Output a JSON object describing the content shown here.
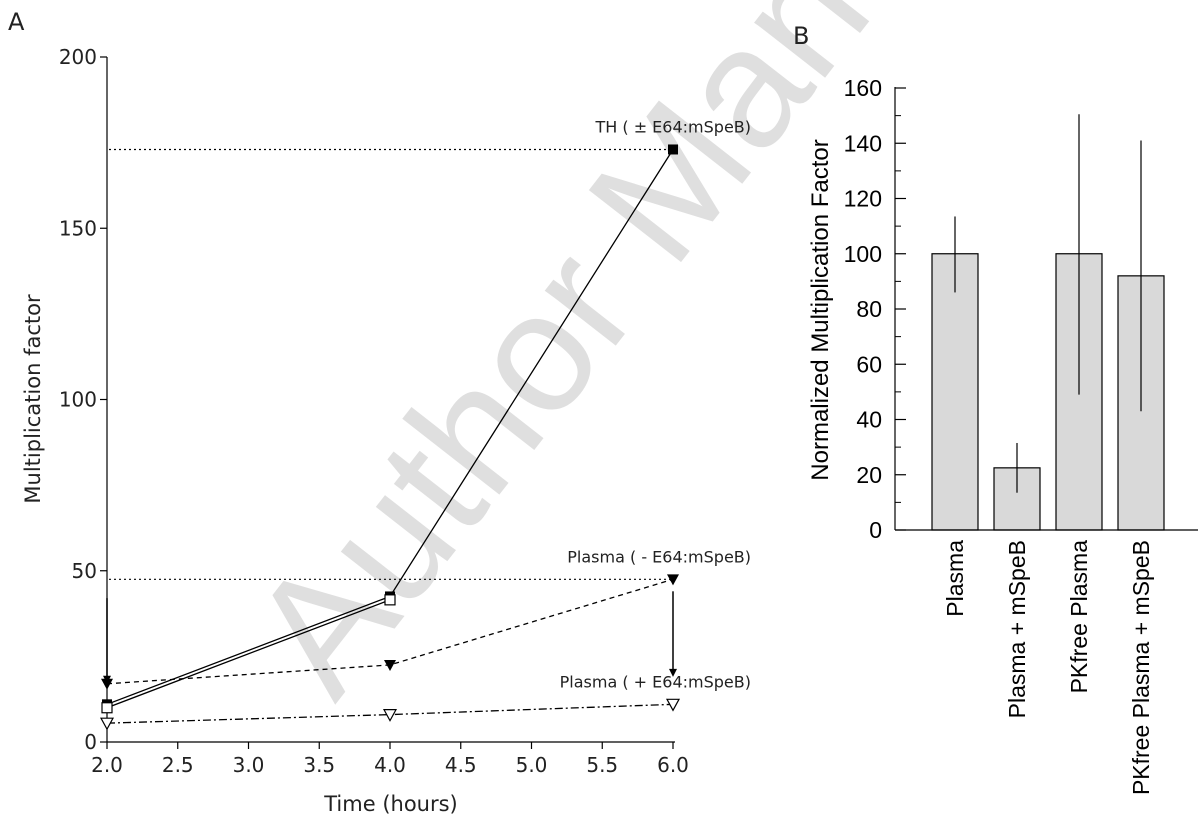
{
  "watermark": "Author Manuscript",
  "chart_data": [
    {
      "panel": "A",
      "type": "line",
      "xlabel": "Time (hours)",
      "ylabel": "Multiplication factor",
      "xlim": [
        2.0,
        6.0
      ],
      "ylim": [
        0,
        200
      ],
      "xticks": [
        2.0,
        2.5,
        3.0,
        3.5,
        4.0,
        4.5,
        5.0,
        5.5,
        6.0
      ],
      "yticks": [
        0,
        50,
        100,
        150,
        200
      ],
      "grid": false,
      "series": [
        {
          "marker": "filled-square",
          "line": "solid",
          "x": [
            2,
            4,
            6
          ],
          "y": [
            11,
            42.5,
            173
          ]
        },
        {
          "marker": "open-square",
          "line": "solid",
          "x": [
            2,
            4
          ],
          "y": [
            10,
            41.5
          ]
        },
        {
          "marker": "filled-triangle-down",
          "line": "dashed",
          "x": [
            2,
            4,
            6
          ],
          "y": [
            17,
            22.5,
            47.5
          ]
        },
        {
          "marker": "open-triangle-down",
          "line": "dash-dot",
          "x": [
            2,
            4,
            6
          ],
          "y": [
            5.5,
            8,
            11
          ]
        }
      ],
      "reference_lines": [
        {
          "y": 173,
          "style": "dotted"
        },
        {
          "y": 47.5,
          "style": "dotted"
        }
      ],
      "annotations": [
        {
          "text": "TH ( ± E64:mSpeB)",
          "x": 6.0,
          "y": 173
        },
        {
          "text": "Plasma ( - E64:mSpeB)",
          "x": 6.0,
          "y": 47.5
        },
        {
          "text": "Plasma ( + E64:mSpeB)",
          "x": 6.0,
          "y": 11
        }
      ],
      "arrows": [
        {
          "x": 2.0,
          "from_y": 42,
          "to_y": 17
        },
        {
          "x": 6.0,
          "from_y": 44,
          "to_y": 19
        }
      ]
    },
    {
      "panel": "B",
      "type": "bar",
      "ylabel": "Normalized Multiplication Factor",
      "ylim": [
        0,
        160
      ],
      "yticks": [
        0,
        20,
        40,
        60,
        80,
        100,
        120,
        140,
        160
      ],
      "grid": false,
      "categories": [
        "Plasma",
        "Plasma + mSpeB",
        "PKfree Plasma",
        "PKfree Plasma + mSpeB"
      ],
      "values": [
        100,
        22.5,
        100,
        92
      ],
      "error_low": [
        86,
        13.5,
        49,
        43
      ],
      "error_high": [
        113.5,
        31.5,
        150.5,
        141
      ],
      "bar_color": "#d9d9d9"
    }
  ]
}
